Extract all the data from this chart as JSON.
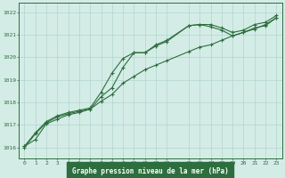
{
  "title": "Graphe pression niveau de la mer (hPa)",
  "bg_color": "#d4ece6",
  "plot_bg_color": "#d4ece6",
  "grid_color": "#aacfca",
  "line_color": "#2d6e3e",
  "xlabel_bg": "#2d6e3e",
  "xlabel_fg": "#d4ece6",
  "xlim": [
    -0.5,
    23.5
  ],
  "ylim": [
    1015.5,
    1022.4
  ],
  "xticks": [
    0,
    1,
    2,
    3,
    4,
    5,
    6,
    7,
    8,
    9,
    10,
    11,
    12,
    13,
    15,
    16,
    17,
    18,
    19,
    20,
    21,
    22,
    23
  ],
  "yticks": [
    1016,
    1017,
    1018,
    1019,
    1020,
    1021,
    1022
  ],
  "line1_x": [
    0,
    1,
    2,
    3,
    4,
    5,
    6,
    7,
    8,
    9,
    10,
    11,
    12,
    13,
    15,
    16,
    17,
    18,
    19,
    20,
    21,
    22,
    23
  ],
  "line1_y": [
    1016.05,
    1016.65,
    1017.15,
    1017.4,
    1017.55,
    1017.65,
    1017.75,
    1018.45,
    1019.3,
    1019.95,
    1020.2,
    1020.2,
    1020.55,
    1020.75,
    1021.4,
    1021.45,
    1021.45,
    1021.3,
    1021.1,
    1021.2,
    1021.45,
    1021.55,
    1021.85
  ],
  "line2_x": [
    0,
    1,
    2,
    3,
    4,
    5,
    6,
    7,
    8,
    9,
    10,
    11,
    12,
    13,
    15,
    16,
    17,
    18,
    19,
    20,
    21,
    22,
    23
  ],
  "line2_y": [
    1016.0,
    1016.6,
    1017.1,
    1017.35,
    1017.5,
    1017.6,
    1017.7,
    1018.25,
    1018.65,
    1019.55,
    1020.2,
    1020.2,
    1020.5,
    1020.7,
    1021.4,
    1021.45,
    1021.35,
    1021.2,
    1020.95,
    1021.1,
    1021.3,
    1021.4,
    1021.75
  ],
  "line3_x": [
    0,
    1,
    2,
    3,
    4,
    5,
    6,
    7,
    8,
    9,
    10,
    11,
    12,
    13,
    15,
    16,
    17,
    18,
    19,
    20,
    21,
    22,
    23
  ],
  "line3_y": [
    1016.05,
    1016.35,
    1017.05,
    1017.25,
    1017.45,
    1017.55,
    1017.7,
    1018.05,
    1018.35,
    1018.85,
    1019.15,
    1019.45,
    1019.65,
    1019.85,
    1020.25,
    1020.45,
    1020.55,
    1020.75,
    1020.95,
    1021.1,
    1021.25,
    1021.45,
    1021.75
  ]
}
